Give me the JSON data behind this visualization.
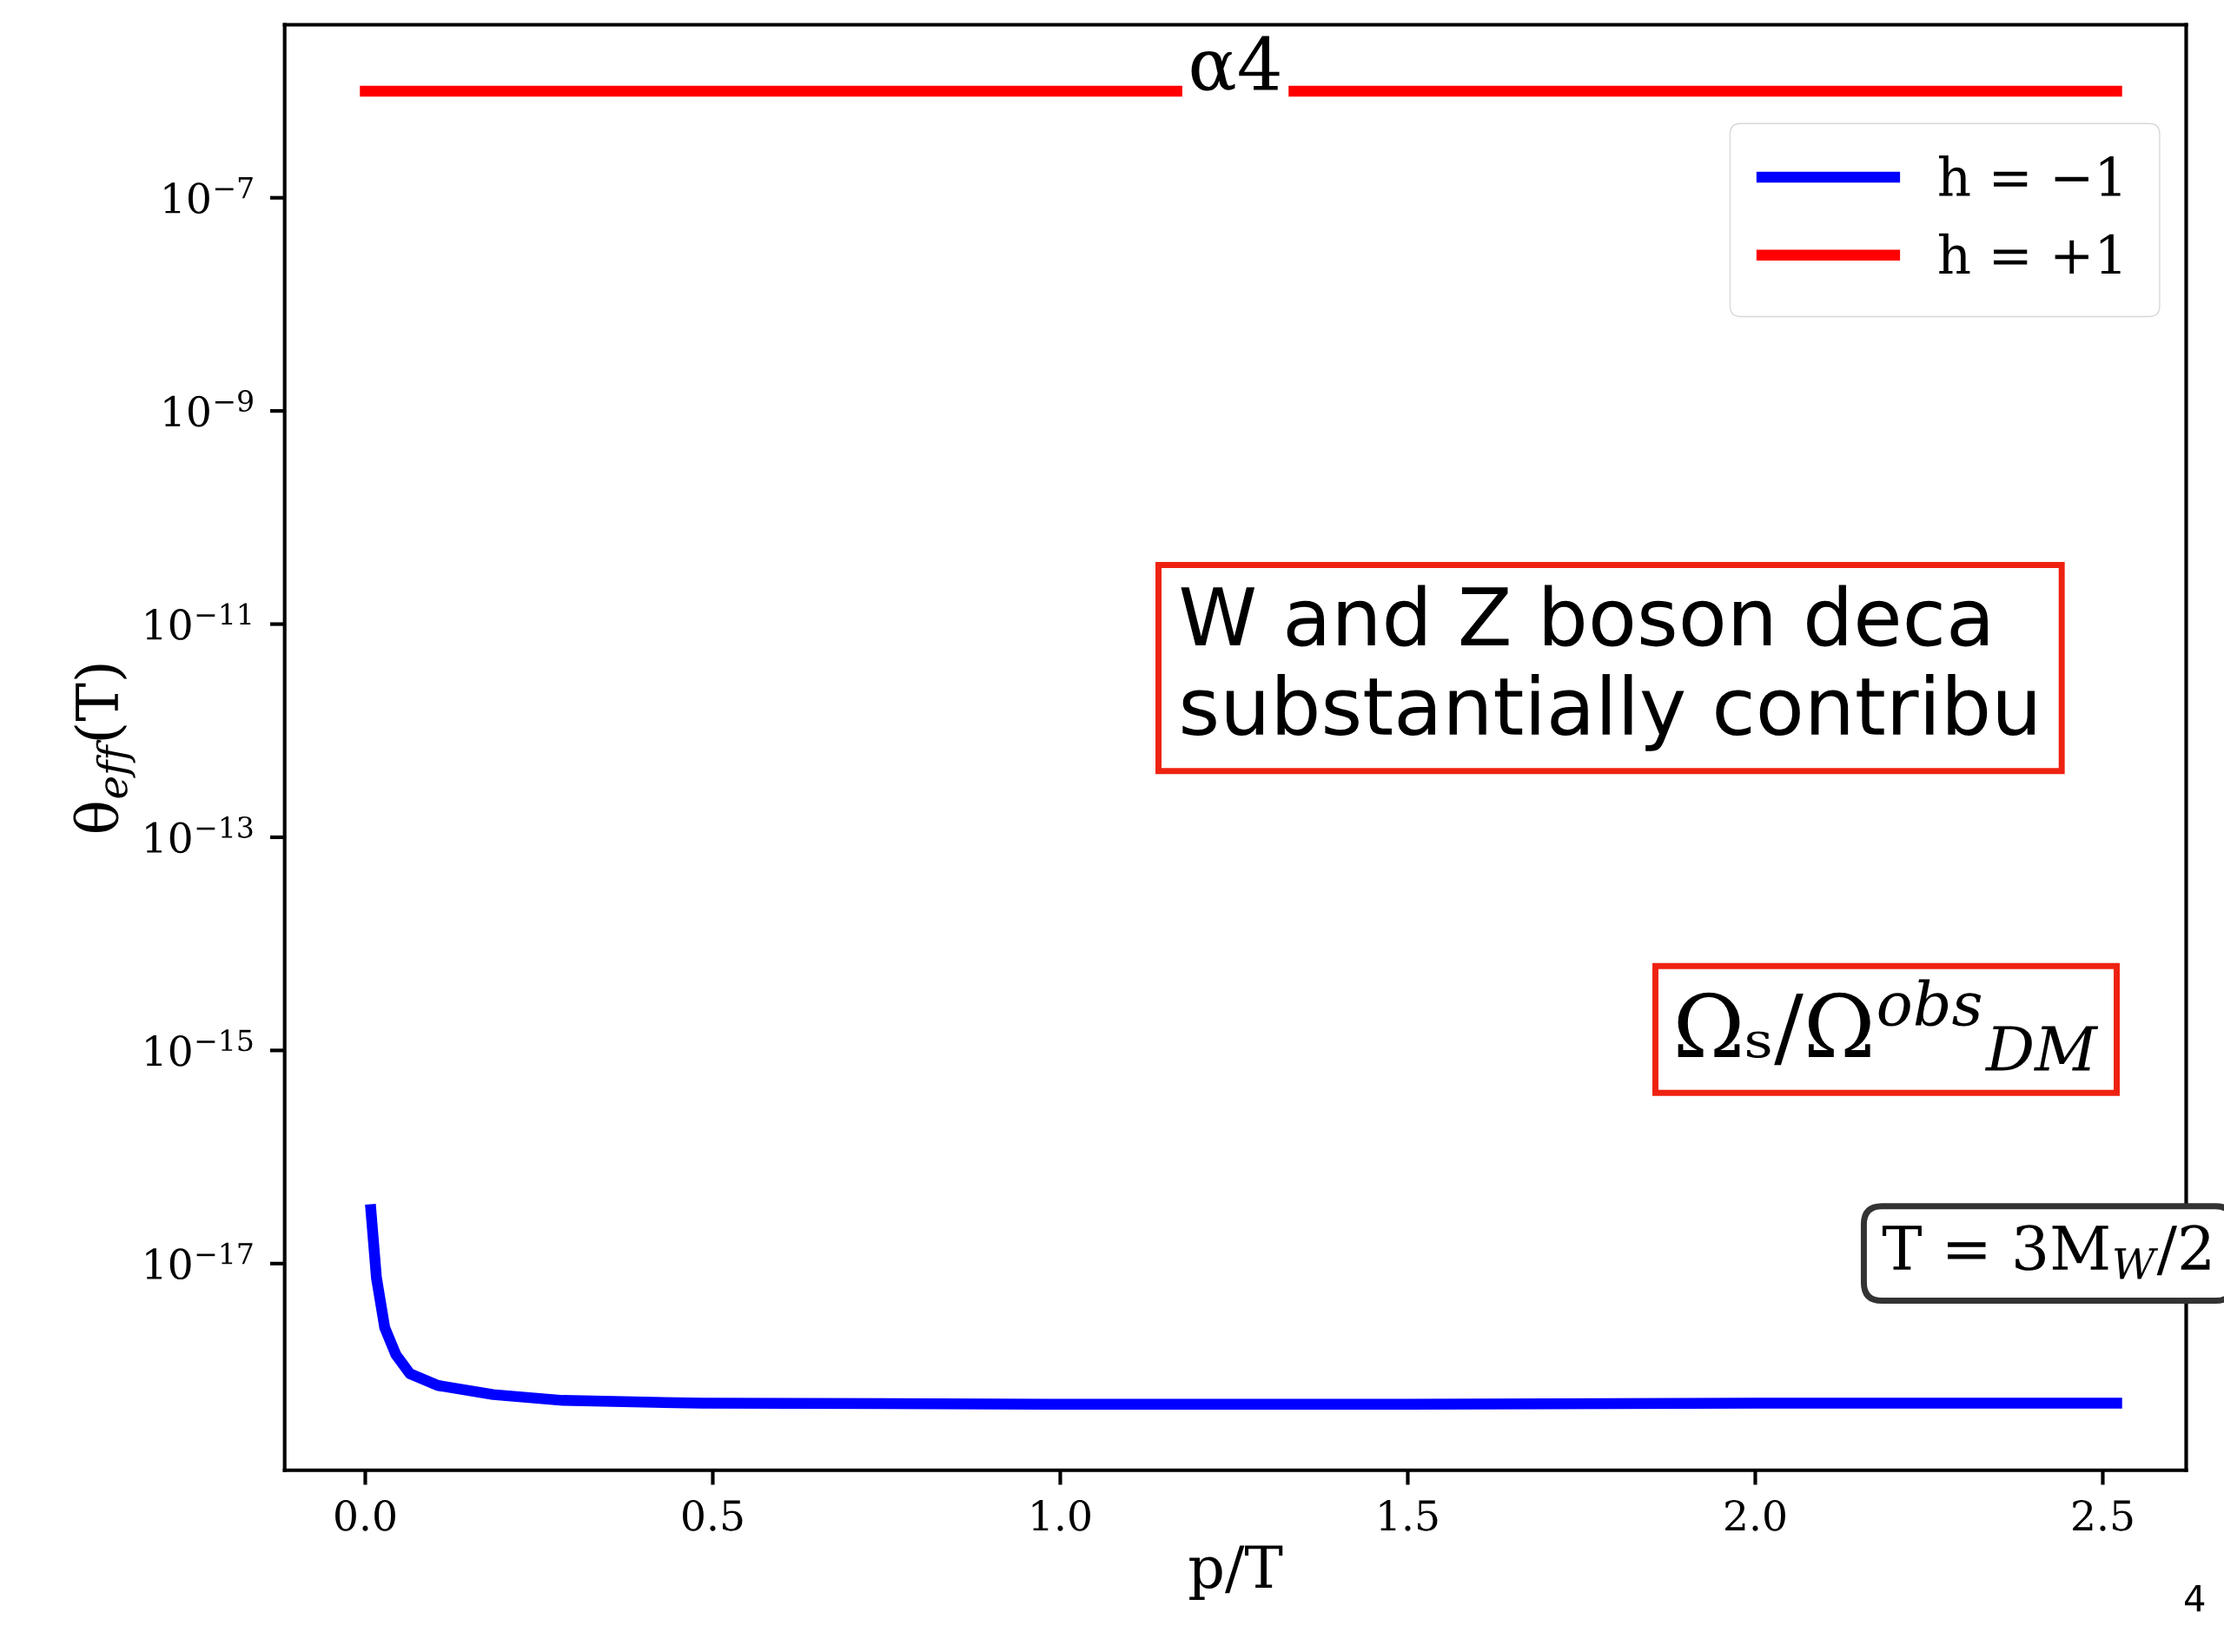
{
  "chart_data": {
    "type": "line",
    "title": "α4",
    "xlabel": "p/T",
    "ylabel": "θ$_{eff}$(T)",
    "series": [
      {
        "name": "h = −1",
        "color": "#0000ff",
        "x": [
          0.008,
          0.016,
          0.028,
          0.044,
          0.064,
          0.104,
          0.184,
          0.284,
          0.484,
          0.984,
          1.5,
          2.0,
          2.52
        ],
        "values": [
          3.2e-17,
          7.4e-18,
          2.5e-18,
          1.4e-18,
          9.3e-19,
          7.2e-19,
          5.9e-19,
          5.2e-19,
          4.9e-19,
          4.8e-19,
          4.8e-19,
          4.9e-19,
          4.9e-19
        ]
      },
      {
        "name": "h = +1",
        "color": "#ff0000",
        "x": [
          0.0,
          2.52
        ],
        "values": [
          1e-06,
          1e-06
        ]
      }
    ],
    "log": "y",
    "xlim": [
      -0.116,
      2.62
    ],
    "ylim": [
      1.15e-19,
      4.2e-06
    ],
    "xticks": [
      {
        "value": 0.0,
        "label": "0.0"
      },
      0.5,
      {
        "value": 1.0,
        "label": "1.0"
      },
      1.5,
      {
        "value": 2.0,
        "label": "2.0"
      },
      2.5
    ],
    "yticks": [
      {
        "value": 1e-07,
        "label": "10$^{−7}$"
      },
      {
        "value": 1e-09,
        "label": "10$^{−9}$"
      },
      {
        "value": 1e-11,
        "label": "10$^{−11}$"
      },
      {
        "value": 1e-13,
        "label": "10$^{−13}$"
      },
      {
        "value": 1e-15,
        "label": "10$^{−15}$"
      },
      {
        "value": 1e-17,
        "label": "10$^{−17}$"
      }
    ],
    "legend": "top right",
    "line_style": "solid",
    "grid": false,
    "annotations": [
      "W and Z boson deca\nsubstantially contribu",
      "Ωₛ/Ω$^{obs}$$_{DM}$",
      "T = 3M$_{W}$/2",
      "4"
    ]
  }
}
